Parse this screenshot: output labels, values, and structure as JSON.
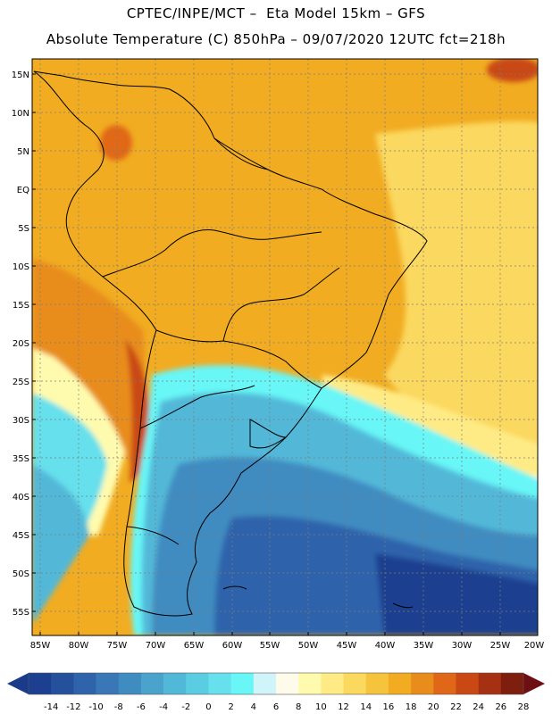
{
  "header": {
    "line1": "CPTEC/INPE/MCT –  Eta Model 15km – GFS",
    "line2": "Absolute Temperature (C) 850hPa – 09/07/2020 12UTC fct=218h"
  },
  "map": {
    "lat_labels": [
      "15N",
      "10N",
      "5N",
      "EQ",
      "5S",
      "10S",
      "15S",
      "20S",
      "25S",
      "30S",
      "35S",
      "40S",
      "45S",
      "50S",
      "55S"
    ],
    "lon_labels": [
      "85W",
      "80W",
      "75W",
      "70W",
      "65W",
      "60W",
      "55W",
      "50W",
      "45W",
      "40W",
      "35W",
      "30W",
      "25W",
      "20W"
    ]
  },
  "colorbar": {
    "ticks": [
      "-14",
      "-12",
      "-10",
      "-8",
      "-6",
      "-4",
      "-2",
      "0",
      "2",
      "4",
      "6",
      "8",
      "10",
      "12",
      "14",
      "16",
      "18",
      "20",
      "22",
      "24",
      "26",
      "28"
    ],
    "colors": [
      "#1c3f8f",
      "#24509c",
      "#2f64ab",
      "#3977b6",
      "#3f8cc1",
      "#49a3cd",
      "#52b8d8",
      "#5bcde3",
      "#66e0ec",
      "#68f6f6",
      "#cff4f9",
      "#fffbea",
      "#fffbae",
      "#ffeb85",
      "#fbd85e",
      "#f5c33c",
      "#f1ac22",
      "#e88d1b",
      "#e06718",
      "#c94814",
      "#a63112",
      "#7e1e0f"
    ],
    "low_arrow_color": "#1a3a8a",
    "high_arrow_color": "#6e0f14"
  }
}
